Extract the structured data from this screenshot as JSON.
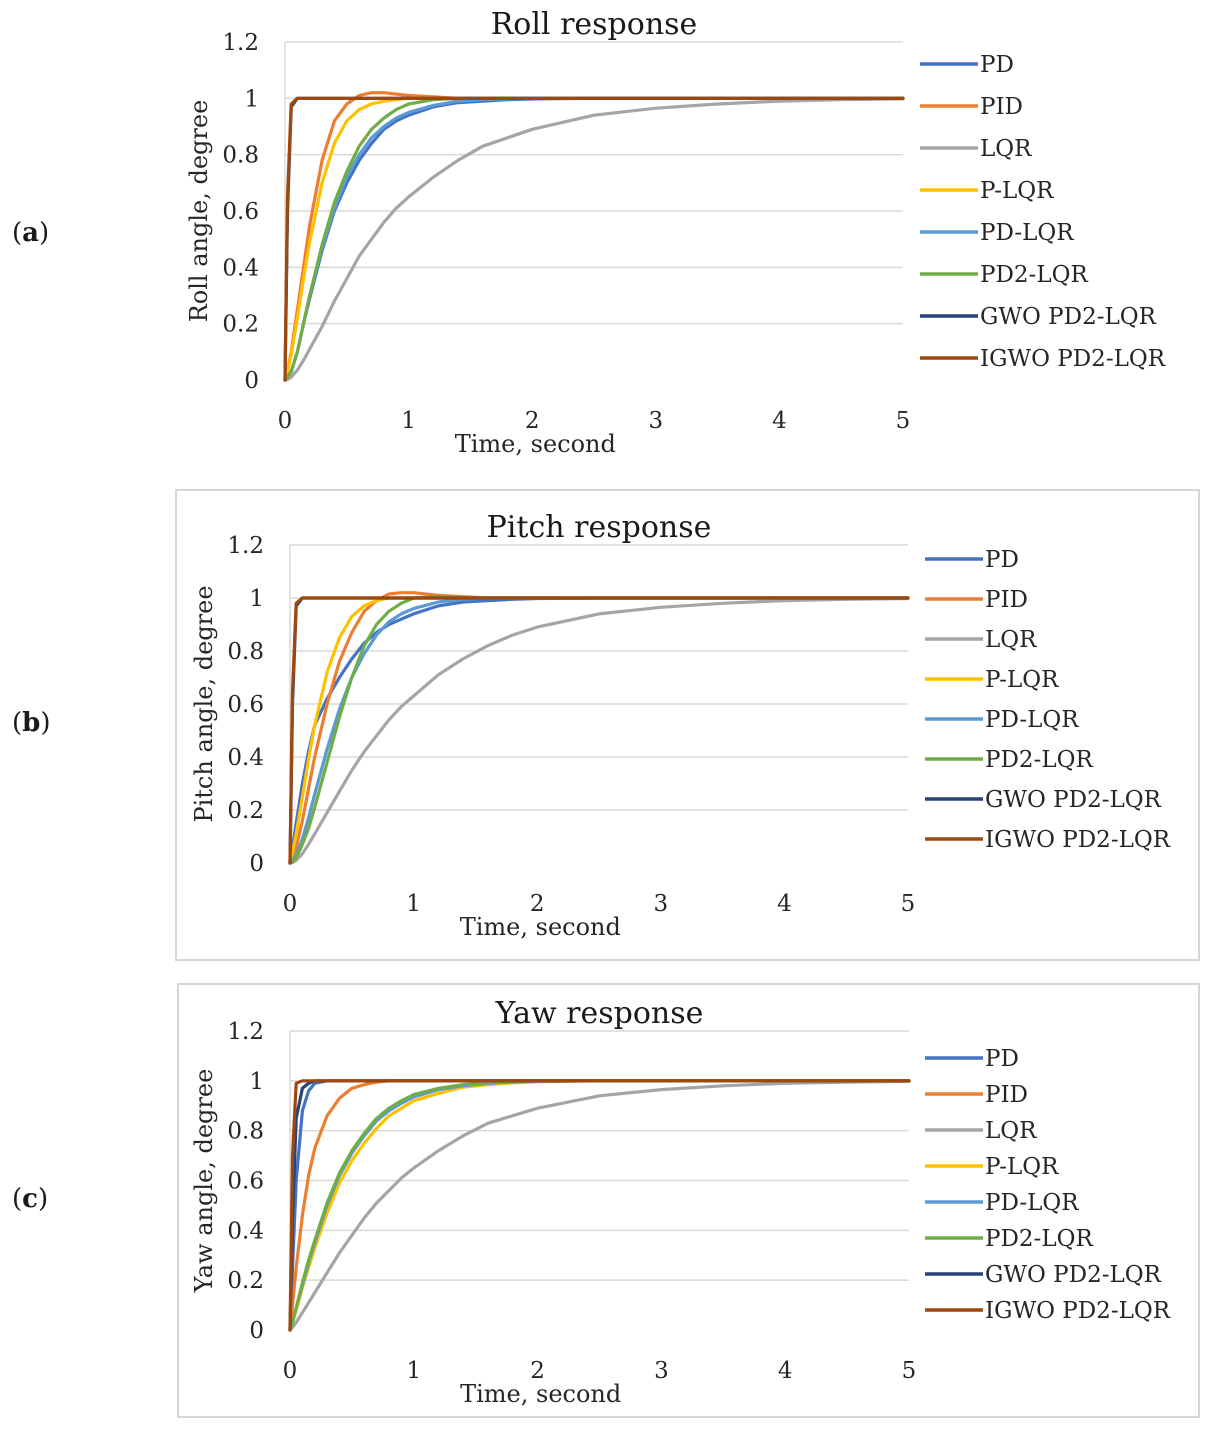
{
  "panels": [
    {
      "label_open": "(",
      "label_letter": "a",
      "label_close": ")"
    },
    {
      "label_open": "(",
      "label_letter": "b",
      "label_close": ")"
    },
    {
      "label_open": "(",
      "label_letter": "c",
      "label_close": ")"
    }
  ],
  "series_styles": [
    {
      "name": "PD",
      "color": "#4472C4"
    },
    {
      "name": "PID",
      "color": "#ED7D31"
    },
    {
      "name": "LQR",
      "color": "#A5A5A5"
    },
    {
      "name": "P-LQR",
      "color": "#FFC000"
    },
    {
      "name": "PD-LQR",
      "color": "#5B9BD5"
    },
    {
      "name": "PD2-LQR",
      "color": "#70AD47"
    },
    {
      "name": "GWO PD2-LQR",
      "color": "#264478"
    },
    {
      "name": "IGWO PD2-LQR",
      "color": "#9E480E"
    }
  ],
  "chart_data": [
    {
      "type": "line",
      "title": "Roll response",
      "xlabel": "Time, second",
      "ylabel": "Roll angle,  degree",
      "xlim": [
        0,
        5
      ],
      "ylim": [
        0,
        1.2
      ],
      "x_ticks": [
        "0",
        "1",
        "2",
        "3",
        "4",
        "5"
      ],
      "y_ticks": [
        "0",
        "0.2",
        "0.4",
        "0.6",
        "0.8",
        "1",
        "1.2"
      ],
      "grid": true,
      "legend": "right",
      "x": [
        0,
        0.02,
        0.05,
        0.1,
        0.15,
        0.2,
        0.3,
        0.4,
        0.5,
        0.6,
        0.7,
        0.8,
        0.9,
        1.0,
        1.2,
        1.4,
        1.6,
        1.8,
        2.0,
        2.5,
        3.0,
        3.5,
        4.0,
        4.5,
        5.0
      ],
      "series": [
        {
          "name": "PD",
          "values": [
            0,
            0.01,
            0.03,
            0.1,
            0.2,
            0.29,
            0.46,
            0.6,
            0.7,
            0.78,
            0.84,
            0.89,
            0.92,
            0.94,
            0.97,
            0.985,
            0.99,
            0.995,
            0.998,
            1,
            1,
            1,
            1,
            1,
            1
          ]
        },
        {
          "name": "PID",
          "values": [
            0,
            0.03,
            0.1,
            0.25,
            0.4,
            0.55,
            0.78,
            0.92,
            0.98,
            1.01,
            1.02,
            1.02,
            1.015,
            1.01,
            1.005,
            1.0,
            1.0,
            1.0,
            1.0,
            1,
            1,
            1,
            1,
            1,
            1
          ]
        },
        {
          "name": "LQR",
          "values": [
            0,
            0.002,
            0.01,
            0.035,
            0.07,
            0.11,
            0.19,
            0.28,
            0.36,
            0.44,
            0.5,
            0.56,
            0.61,
            0.65,
            0.72,
            0.78,
            0.83,
            0.86,
            0.89,
            0.94,
            0.965,
            0.98,
            0.99,
            0.995,
            0.998
          ]
        },
        {
          "name": "P-LQR",
          "values": [
            0,
            0.03,
            0.09,
            0.22,
            0.36,
            0.49,
            0.7,
            0.84,
            0.92,
            0.96,
            0.98,
            0.99,
            0.995,
            1.0,
            1.0,
            1.0,
            1,
            1,
            1,
            1,
            1,
            1,
            1,
            1,
            1
          ]
        },
        {
          "name": "PD-LQR",
          "values": [
            0,
            0.01,
            0.03,
            0.1,
            0.2,
            0.3,
            0.47,
            0.61,
            0.72,
            0.8,
            0.86,
            0.9,
            0.93,
            0.95,
            0.975,
            0.99,
            0.995,
            0.998,
            1,
            1,
            1,
            1,
            1,
            1,
            1
          ]
        },
        {
          "name": "PD2-LQR",
          "values": [
            0,
            0.01,
            0.03,
            0.1,
            0.2,
            0.3,
            0.48,
            0.63,
            0.74,
            0.83,
            0.89,
            0.93,
            0.96,
            0.98,
            0.995,
            1.0,
            1.0,
            1.0,
            1.0,
            1,
            1,
            1,
            1,
            1,
            1
          ]
        },
        {
          "name": "GWO PD2-LQR",
          "values": [
            0,
            0.6,
            0.97,
            1.0,
            1,
            1,
            1,
            1,
            1,
            1,
            1,
            1,
            1,
            1,
            1,
            1,
            1,
            1,
            1,
            1,
            1,
            1,
            1,
            1,
            1
          ]
        },
        {
          "name": "IGWO PD2-LQR",
          "values": [
            0,
            0.65,
            0.98,
            1.0,
            1,
            1,
            1,
            1,
            1,
            1,
            1,
            1,
            1,
            1,
            1,
            1,
            1,
            1,
            1,
            1,
            1,
            1,
            1,
            1,
            1
          ]
        }
      ]
    },
    {
      "type": "line",
      "title": "Pitch response",
      "xlabel": "Time, second",
      "ylabel": "Pitch angle,  degree",
      "xlim": [
        0,
        5
      ],
      "ylim": [
        0,
        1.2
      ],
      "x_ticks": [
        "0",
        "1",
        "2",
        "3",
        "4",
        "5"
      ],
      "y_ticks": [
        "0",
        "0.2",
        "0.4",
        "0.6",
        "0.8",
        "1",
        "1.2"
      ],
      "grid": true,
      "legend": "right",
      "x": [
        0,
        0.02,
        0.05,
        0.1,
        0.15,
        0.2,
        0.3,
        0.4,
        0.5,
        0.6,
        0.7,
        0.8,
        0.9,
        1.0,
        1.2,
        1.4,
        1.6,
        1.8,
        2.0,
        2.5,
        3.0,
        3.5,
        4.0,
        4.5,
        5.0
      ],
      "series": [
        {
          "name": "PD",
          "values": [
            0,
            0.06,
            0.15,
            0.3,
            0.42,
            0.52,
            0.62,
            0.7,
            0.77,
            0.83,
            0.87,
            0.9,
            0.92,
            0.94,
            0.97,
            0.985,
            0.99,
            0.995,
            0.998,
            1,
            1,
            1,
            1,
            1,
            1
          ]
        },
        {
          "name": "PID",
          "values": [
            0,
            0.02,
            0.06,
            0.16,
            0.28,
            0.4,
            0.6,
            0.76,
            0.87,
            0.95,
            0.99,
            1.015,
            1.02,
            1.02,
            1.01,
            1.005,
            1.0,
            1.0,
            1.0,
            1,
            1,
            1,
            1,
            1,
            1
          ]
        },
        {
          "name": "LQR",
          "values": [
            0,
            0.002,
            0.01,
            0.035,
            0.07,
            0.11,
            0.19,
            0.27,
            0.35,
            0.42,
            0.48,
            0.54,
            0.59,
            0.63,
            0.71,
            0.77,
            0.82,
            0.86,
            0.89,
            0.94,
            0.965,
            0.98,
            0.99,
            0.995,
            0.998
          ]
        },
        {
          "name": "P-LQR",
          "values": [
            0,
            0.04,
            0.11,
            0.25,
            0.39,
            0.52,
            0.72,
            0.85,
            0.93,
            0.97,
            0.99,
            1.0,
            1.0,
            1.0,
            1,
            1,
            1,
            1,
            1,
            1,
            1,
            1,
            1,
            1,
            1
          ]
        },
        {
          "name": "PD-LQR",
          "values": [
            0,
            0.01,
            0.03,
            0.09,
            0.17,
            0.26,
            0.43,
            0.58,
            0.7,
            0.79,
            0.86,
            0.91,
            0.94,
            0.96,
            0.985,
            0.995,
            1.0,
            1.0,
            1.0,
            1,
            1,
            1,
            1,
            1,
            1
          ]
        },
        {
          "name": "PD2-LQR",
          "values": [
            0,
            0.005,
            0.02,
            0.07,
            0.13,
            0.21,
            0.38,
            0.55,
            0.7,
            0.82,
            0.9,
            0.95,
            0.98,
            1.0,
            1.005,
            1.0,
            1.0,
            1.0,
            1.0,
            1,
            1,
            1,
            1,
            1,
            1
          ]
        },
        {
          "name": "GWO PD2-LQR",
          "values": [
            0,
            0.6,
            0.97,
            1.0,
            1,
            1,
            1,
            1,
            1,
            1,
            1,
            1,
            1,
            1,
            1,
            1,
            1,
            1,
            1,
            1,
            1,
            1,
            1,
            1,
            1
          ]
        },
        {
          "name": "IGWO PD2-LQR",
          "values": [
            0,
            0.65,
            0.98,
            1.0,
            1,
            1,
            1,
            1,
            1,
            1,
            1,
            1,
            1,
            1,
            1,
            1,
            1,
            1,
            1,
            1,
            1,
            1,
            1,
            1,
            1
          ]
        }
      ]
    },
    {
      "type": "line",
      "title": "Yaw response",
      "xlabel": "Time, second",
      "ylabel": "Yaw angle,  degree",
      "xlim": [
        0,
        5
      ],
      "ylim": [
        0,
        1.2
      ],
      "x_ticks": [
        "0",
        "1",
        "2",
        "3",
        "4",
        "5"
      ],
      "y_ticks": [
        "0",
        "0.2",
        "0.4",
        "0.6",
        "0.8",
        "1",
        "1.2"
      ],
      "grid": true,
      "legend": "right",
      "x": [
        0,
        0.02,
        0.05,
        0.1,
        0.15,
        0.2,
        0.3,
        0.4,
        0.5,
        0.6,
        0.7,
        0.8,
        0.9,
        1.0,
        1.2,
        1.4,
        1.6,
        1.8,
        2.0,
        2.5,
        3.0,
        3.5,
        4.0,
        4.5,
        5.0
      ],
      "series": [
        {
          "name": "PD",
          "values": [
            0,
            0.25,
            0.6,
            0.88,
            0.96,
            0.99,
            1.0,
            1,
            1,
            1,
            1,
            1,
            1,
            1,
            1,
            1,
            1,
            1,
            1,
            1,
            1,
            1,
            1,
            1,
            1
          ]
        },
        {
          "name": "PID",
          "values": [
            0,
            0.1,
            0.25,
            0.46,
            0.62,
            0.73,
            0.86,
            0.93,
            0.97,
            0.985,
            0.995,
            1.0,
            1.0,
            1.0,
            1,
            1,
            1,
            1,
            1,
            1,
            1,
            1,
            1,
            1,
            1
          ]
        },
        {
          "name": "LQR",
          "values": [
            0,
            0.01,
            0.03,
            0.07,
            0.11,
            0.15,
            0.23,
            0.31,
            0.38,
            0.45,
            0.51,
            0.56,
            0.61,
            0.65,
            0.72,
            0.78,
            0.83,
            0.86,
            0.89,
            0.94,
            0.965,
            0.98,
            0.99,
            0.995,
            0.998
          ]
        },
        {
          "name": "P-LQR",
          "values": [
            0,
            0.03,
            0.08,
            0.17,
            0.25,
            0.33,
            0.47,
            0.59,
            0.68,
            0.75,
            0.81,
            0.86,
            0.89,
            0.92,
            0.95,
            0.975,
            0.985,
            0.992,
            0.996,
            1,
            1,
            1,
            1,
            1,
            1
          ]
        },
        {
          "name": "PD-LQR",
          "values": [
            0,
            0.03,
            0.09,
            0.18,
            0.27,
            0.35,
            0.5,
            0.62,
            0.71,
            0.78,
            0.84,
            0.88,
            0.91,
            0.935,
            0.965,
            0.98,
            0.99,
            0.995,
            0.998,
            1,
            1,
            1,
            1,
            1,
            1
          ]
        },
        {
          "name": "PD2-LQR",
          "values": [
            0,
            0.03,
            0.09,
            0.19,
            0.28,
            0.36,
            0.51,
            0.63,
            0.72,
            0.79,
            0.85,
            0.89,
            0.92,
            0.945,
            0.97,
            0.985,
            0.993,
            0.997,
            1,
            1,
            1,
            1,
            1,
            1,
            1
          ]
        },
        {
          "name": "GWO PD2-LQR",
          "values": [
            0,
            0.45,
            0.85,
            0.97,
            0.99,
            1.0,
            1,
            1,
            1,
            1,
            1,
            1,
            1,
            1,
            1,
            1,
            1,
            1,
            1,
            1,
            1,
            1,
            1,
            1,
            1
          ]
        },
        {
          "name": "IGWO PD2-LQR",
          "values": [
            0,
            0.7,
            0.99,
            1.0,
            1,
            1,
            1,
            1,
            1,
            1,
            1,
            1,
            1,
            1,
            1,
            1,
            1,
            1,
            1,
            1,
            1,
            1,
            1,
            1,
            1
          ]
        }
      ]
    }
  ]
}
